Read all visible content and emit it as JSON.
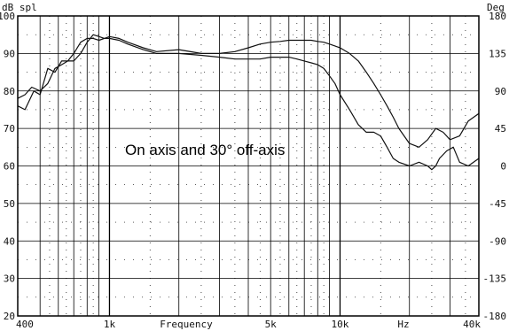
{
  "chart_data": {
    "type": "line",
    "y_left_label": "dB spl",
    "y_right_label": "Deg",
    "xlabel": "Frequency",
    "x_scale": "log",
    "xlim": [
      400,
      40000
    ],
    "ylim": [
      20,
      100
    ],
    "y2lim": [
      -180,
      180
    ],
    "grid": true,
    "x_tick_labels": [
      {
        "value": 400,
        "label": "400"
      },
      {
        "value": 1000,
        "label": "1k"
      },
      {
        "value": 5000,
        "label": "5k"
      },
      {
        "value": 10000,
        "label": "10k"
      },
      {
        "value": 40000,
        "label": "40k"
      }
    ],
    "x_unit_label": "Hz",
    "y_ticks": [
      20,
      30,
      40,
      50,
      60,
      70,
      80,
      90,
      100
    ],
    "y_tick_labels": [
      "20",
      "30",
      "40",
      "50",
      "60",
      "70",
      "80",
      "90",
      "100"
    ],
    "y2_ticks": [
      -180,
      -135,
      -90,
      -45,
      0,
      45,
      90,
      135,
      180
    ],
    "y2_tick_labels": [
      "-180",
      "-135",
      "-90",
      "-45",
      "0",
      "45",
      "90",
      "135",
      "180"
    ],
    "annotation": "On axis and 30° off-axis",
    "series": [
      {
        "x": [
          400,
          430,
          470,
          500,
          540,
          580,
          620,
          660,
          700,
          750,
          800,
          850,
          900,
          950,
          1000,
          1100,
          1200,
          1400,
          1600,
          2000,
          2500,
          3000,
          3500,
          4000,
          4500,
          5000,
          5500,
          6000,
          6500,
          7000,
          7500,
          8000,
          8500,
          9000,
          9500,
          10000,
          11000,
          12000,
          13000,
          14000,
          15000,
          16000,
          17000,
          18000,
          20000,
          22000,
          24000,
          26000,
          28000,
          30000,
          33000,
          36000,
          40000
        ],
        "y": [
          76,
          75,
          80,
          79,
          86,
          85,
          88,
          88,
          90,
          93,
          94,
          94,
          93.5,
          94,
          94.5,
          94,
          93,
          91.5,
          90.5,
          91,
          90,
          90,
          90.5,
          91.5,
          92.5,
          93,
          93.2,
          93.5,
          93.5,
          93.5,
          93.5,
          93.2,
          93,
          92.5,
          92,
          91.5,
          90,
          88,
          85,
          82,
          79,
          76,
          73,
          70,
          66,
          65,
          67,
          70,
          69,
          67,
          68,
          72,
          74
        ]
      },
      {
        "x": [
          400,
          430,
          460,
          500,
          540,
          580,
          620,
          660,
          700,
          750,
          800,
          850,
          900,
          950,
          1000,
          1100,
          1200,
          1400,
          1600,
          2000,
          2500,
          3000,
          3500,
          4000,
          4500,
          5000,
          5500,
          6000,
          6500,
          7000,
          7500,
          8000,
          8500,
          9000,
          9500,
          10000,
          11000,
          12000,
          13000,
          14000,
          15000,
          16000,
          17000,
          18000,
          20000,
          22000,
          24000,
          25000,
          26000,
          27000,
          29000,
          31000,
          33000,
          36000,
          40000
        ],
        "y": [
          78,
          79,
          81,
          80,
          82,
          86,
          87,
          88,
          88,
          90,
          93,
          95,
          94.5,
          94,
          94,
          93.5,
          92.5,
          91,
          90,
          90,
          89.5,
          89,
          88.5,
          88.5,
          88.5,
          89,
          89,
          89,
          88.5,
          88,
          87.5,
          87,
          86,
          84,
          82,
          79,
          75,
          71,
          69,
          69,
          68,
          65,
          62,
          61,
          60,
          61,
          60,
          59,
          60,
          62,
          64,
          65,
          61,
          60,
          62
        ]
      }
    ]
  }
}
